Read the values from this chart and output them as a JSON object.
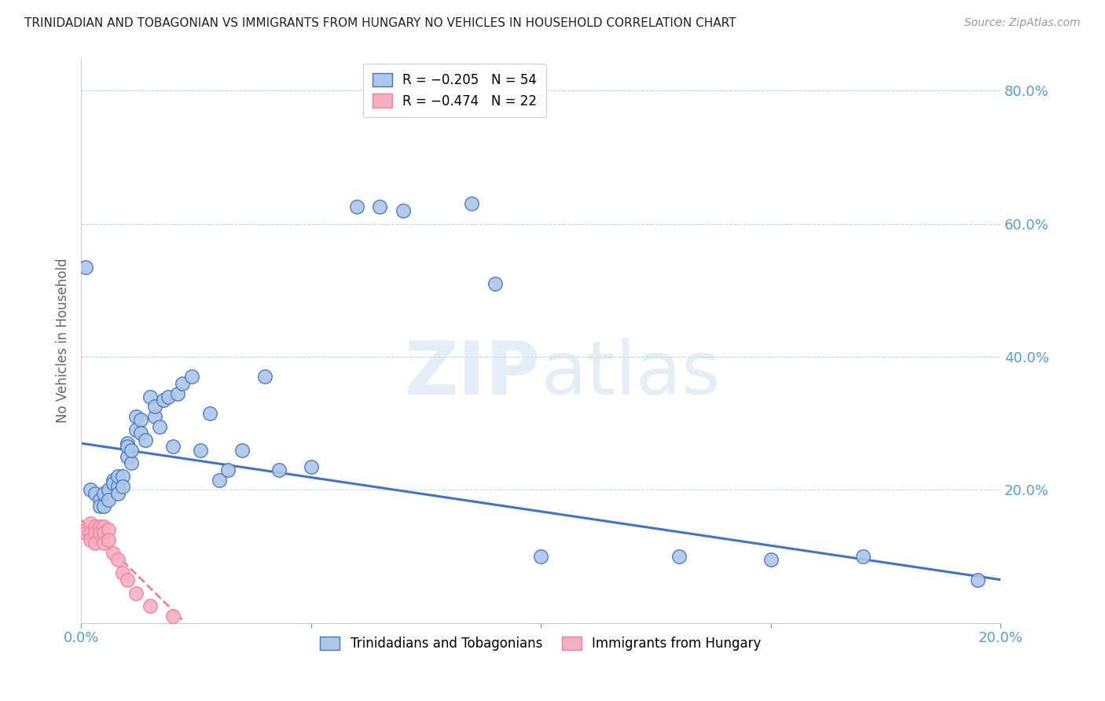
{
  "title": "TRINIDADIAN AND TOBAGONIAN VS IMMIGRANTS FROM HUNGARY NO VEHICLES IN HOUSEHOLD CORRELATION CHART",
  "source": "Source: ZipAtlas.com",
  "ylabel": "No Vehicles in Household",
  "right_yticks": [
    "80.0%",
    "60.0%",
    "40.0%",
    "20.0%"
  ],
  "right_ytick_vals": [
    0.8,
    0.6,
    0.4,
    0.2
  ],
  "xlim": [
    0.0,
    0.2
  ],
  "ylim": [
    0.0,
    0.85
  ],
  "watermark_zip": "ZIP",
  "watermark_atlas": "atlas",
  "legend_blue_r": "R = −0.205",
  "legend_blue_n": "N = 54",
  "legend_pink_r": "R = −0.474",
  "legend_pink_n": "N = 22",
  "blue_color": "#aec6e8",
  "pink_color": "#f4afc3",
  "blue_line_color": "#4472c4",
  "pink_line_color": "#f48098",
  "title_color": "#222222",
  "axis_label_color": "#5b9bd5",
  "grid_color": "#c8d8ea",
  "blue_scatter_x": [
    0.001,
    0.002,
    0.003,
    0.004,
    0.004,
    0.005,
    0.005,
    0.006,
    0.006,
    0.007,
    0.007,
    0.008,
    0.008,
    0.008,
    0.009,
    0.009,
    0.01,
    0.01,
    0.01,
    0.011,
    0.011,
    0.012,
    0.012,
    0.013,
    0.013,
    0.014,
    0.015,
    0.016,
    0.016,
    0.017,
    0.018,
    0.019,
    0.02,
    0.021,
    0.022,
    0.024,
    0.026,
    0.028,
    0.03,
    0.032,
    0.035,
    0.04,
    0.043,
    0.05,
    0.06,
    0.065,
    0.07,
    0.085,
    0.09,
    0.1,
    0.13,
    0.15,
    0.17,
    0.195
  ],
  "blue_scatter_y": [
    0.535,
    0.2,
    0.195,
    0.185,
    0.175,
    0.195,
    0.175,
    0.2,
    0.185,
    0.215,
    0.21,
    0.205,
    0.195,
    0.22,
    0.22,
    0.205,
    0.27,
    0.25,
    0.265,
    0.24,
    0.26,
    0.31,
    0.29,
    0.305,
    0.285,
    0.275,
    0.34,
    0.31,
    0.325,
    0.295,
    0.335,
    0.34,
    0.265,
    0.345,
    0.36,
    0.37,
    0.26,
    0.315,
    0.215,
    0.23,
    0.26,
    0.37,
    0.23,
    0.235,
    0.625,
    0.625,
    0.62,
    0.63,
    0.51,
    0.1,
    0.1,
    0.095,
    0.1,
    0.065
  ],
  "pink_scatter_x": [
    0.001,
    0.001,
    0.002,
    0.002,
    0.002,
    0.003,
    0.003,
    0.003,
    0.004,
    0.004,
    0.005,
    0.005,
    0.005,
    0.006,
    0.006,
    0.007,
    0.008,
    0.009,
    0.01,
    0.012,
    0.015,
    0.02
  ],
  "pink_scatter_y": [
    0.14,
    0.135,
    0.15,
    0.135,
    0.125,
    0.145,
    0.135,
    0.12,
    0.145,
    0.135,
    0.145,
    0.135,
    0.12,
    0.14,
    0.125,
    0.105,
    0.095,
    0.075,
    0.065,
    0.045,
    0.025,
    0.01
  ],
  "blue_trend_x": [
    0.0,
    0.2
  ],
  "blue_trend_y": [
    0.27,
    0.065
  ],
  "pink_trend_x": [
    0.0,
    0.022
  ],
  "pink_trend_y": [
    0.155,
    0.005
  ]
}
